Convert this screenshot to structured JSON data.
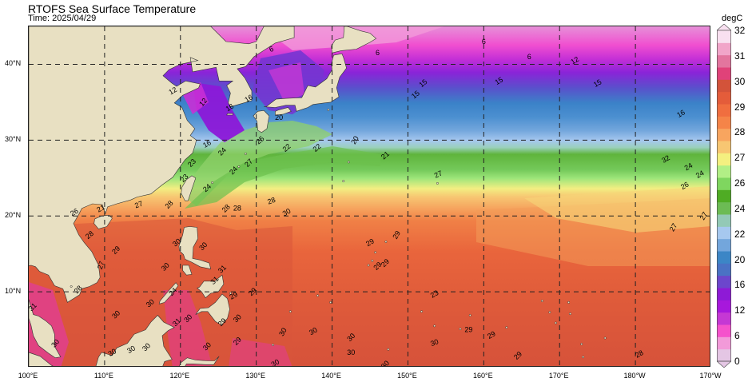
{
  "header": {
    "title": "RTOFS Sea Surface Temperature",
    "time": "Time: 2025/04/29"
  },
  "map": {
    "lon_range": [
      100,
      190
    ],
    "lat_range": [
      0,
      45
    ],
    "x_ticks": [
      {
        "lon": 100,
        "label": "100°E"
      },
      {
        "lon": 110,
        "label": "110°E"
      },
      {
        "lon": 120,
        "label": "120°E"
      },
      {
        "lon": 130,
        "label": "130°E"
      },
      {
        "lon": 140,
        "label": "140°E"
      },
      {
        "lon": 150,
        "label": "150°E"
      },
      {
        "lon": 160,
        "label": "160°E"
      },
      {
        "lon": 170,
        "label": "170°E"
      },
      {
        "lon": 180,
        "label": "180°W"
      },
      {
        "lon": 190,
        "label": "170°W"
      }
    ],
    "y_ticks": [
      {
        "lat": 10,
        "label": "10°N"
      },
      {
        "lat": 20,
        "label": "20°N"
      },
      {
        "lat": 30,
        "label": "30°N"
      },
      {
        "lat": 40,
        "label": "40°N"
      }
    ],
    "grid_lons": [
      110,
      120,
      130,
      140,
      150,
      160,
      170,
      180
    ],
    "grid_lats": [
      10,
      20,
      30,
      40
    ],
    "land_color": "#e8e0c2",
    "contour_labels": [
      {
        "text": "6",
        "lon": 132,
        "lat": 42,
        "rot": -20
      },
      {
        "text": "6",
        "lon": 146,
        "lat": 41.5,
        "rot": 0
      },
      {
        "text": "6",
        "lon": 160,
        "lat": 43,
        "rot": 0
      },
      {
        "text": "6",
        "lon": 166,
        "lat": 41,
        "rot": 0
      },
      {
        "text": "12",
        "lon": 172,
        "lat": 40.5,
        "rot": -30
      },
      {
        "text": "12",
        "lon": 119,
        "lat": 36.5,
        "rot": -30
      },
      {
        "text": "12",
        "lon": 123,
        "lat": 35,
        "rot": -50
      },
      {
        "text": "16",
        "lon": 126.5,
        "lat": 34.3,
        "rot": -30
      },
      {
        "text": "16",
        "lon": 129,
        "lat": 35.5,
        "rot": -30
      },
      {
        "text": "15",
        "lon": 152,
        "lat": 37.5,
        "rot": -40
      },
      {
        "text": "15",
        "lon": 151,
        "lat": 36,
        "rot": -40
      },
      {
        "text": "15",
        "lon": 162,
        "lat": 37.8,
        "rot": -30
      },
      {
        "text": "15",
        "lon": 175,
        "lat": 37.5,
        "rot": -30
      },
      {
        "text": "16",
        "lon": 186,
        "lat": 33.5,
        "rot": -30
      },
      {
        "text": "20",
        "lon": 133,
        "lat": 33,
        "rot": 0
      },
      {
        "text": "16",
        "lon": 123.5,
        "lat": 29.5,
        "rot": -30
      },
      {
        "text": "24",
        "lon": 125.5,
        "lat": 28.5,
        "rot": -45
      },
      {
        "text": "25",
        "lon": 130.5,
        "lat": 30,
        "rot": -40
      },
      {
        "text": "22",
        "lon": 134,
        "lat": 29,
        "rot": -40
      },
      {
        "text": "22",
        "lon": 138,
        "lat": 29,
        "rot": -40
      },
      {
        "text": "20",
        "lon": 143,
        "lat": 30,
        "rot": -60
      },
      {
        "text": "21",
        "lon": 147,
        "lat": 28,
        "rot": -40
      },
      {
        "text": "23",
        "lon": 121.5,
        "lat": 27,
        "rot": -45
      },
      {
        "text": "24",
        "lon": 127,
        "lat": 26,
        "rot": -45
      },
      {
        "text": "27",
        "lon": 129,
        "lat": 27,
        "rot": -45
      },
      {
        "text": "23",
        "lon": 120.5,
        "lat": 25,
        "rot": -45
      },
      {
        "text": "24",
        "lon": 123.5,
        "lat": 23.7,
        "rot": -40
      },
      {
        "text": "27",
        "lon": 154,
        "lat": 25.5,
        "rot": -25
      },
      {
        "text": "32",
        "lon": 184,
        "lat": 27.5,
        "rot": -30
      },
      {
        "text": "24",
        "lon": 187,
        "lat": 26.5,
        "rot": -30
      },
      {
        "text": "24",
        "lon": 188.5,
        "lat": 25.5,
        "rot": -30
      },
      {
        "text": "26",
        "lon": 186.5,
        "lat": 24,
        "rot": -30
      },
      {
        "text": "27",
        "lon": 189,
        "lat": 20,
        "rot": -60
      },
      {
        "text": "27",
        "lon": 185,
        "lat": 18.5,
        "rot": -60
      },
      {
        "text": "21",
        "lon": 109.5,
        "lat": 21,
        "rot": -30
      },
      {
        "text": "27",
        "lon": 114.5,
        "lat": 21.5,
        "rot": -20
      },
      {
        "text": "28",
        "lon": 118.5,
        "lat": 21.5,
        "rot": -45
      },
      {
        "text": "28",
        "lon": 126,
        "lat": 21,
        "rot": -45
      },
      {
        "text": "28",
        "lon": 127.5,
        "lat": 21,
        "rot": 0
      },
      {
        "text": "28",
        "lon": 132,
        "lat": 22,
        "rot": -20
      },
      {
        "text": "30",
        "lon": 134,
        "lat": 20.5,
        "rot": -30
      },
      {
        "text": "26",
        "lon": 106,
        "lat": 20.5,
        "rot": -30
      },
      {
        "text": "28",
        "lon": 108,
        "lat": 17.5,
        "rot": -40
      },
      {
        "text": "29",
        "lon": 111.5,
        "lat": 15.5,
        "rot": -45
      },
      {
        "text": "30",
        "lon": 119.5,
        "lat": 16.5,
        "rot": -40
      },
      {
        "text": "30",
        "lon": 123,
        "lat": 16,
        "rot": -45
      },
      {
        "text": "29",
        "lon": 145,
        "lat": 16.5,
        "rot": -30
      },
      {
        "text": "29",
        "lon": 148.5,
        "lat": 17.5,
        "rot": -60
      },
      {
        "text": "29",
        "lon": 147,
        "lat": 13.8,
        "rot": -45
      },
      {
        "text": "29",
        "lon": 146,
        "lat": 13.4,
        "rot": -45
      },
      {
        "text": "27",
        "lon": 109.5,
        "lat": 13.5,
        "rot": -70
      },
      {
        "text": "30",
        "lon": 118,
        "lat": 13.3,
        "rot": -45
      },
      {
        "text": "31",
        "lon": 125.5,
        "lat": 13,
        "rot": -45
      },
      {
        "text": "31",
        "lon": 124.5,
        "lat": 11.5,
        "rot": -45
      },
      {
        "text": "29",
        "lon": 127,
        "lat": 9.5,
        "rot": -30
      },
      {
        "text": "29",
        "lon": 129.5,
        "lat": 10,
        "rot": -45
      },
      {
        "text": "24",
        "lon": 119,
        "lat": 10,
        "rot": -45
      },
      {
        "text": "28",
        "lon": 106.5,
        "lat": 10.3,
        "rot": -45
      },
      {
        "text": "30",
        "lon": 116,
        "lat": 8.5,
        "rot": -40
      },
      {
        "text": "30",
        "lon": 111.5,
        "lat": 7,
        "rot": -45
      },
      {
        "text": "23",
        "lon": 153.5,
        "lat": 9.7,
        "rot": -30
      },
      {
        "text": "31",
        "lon": 100.5,
        "lat": 8,
        "rot": -45
      },
      {
        "text": "31",
        "lon": 119.5,
        "lat": 6,
        "rot": -45
      },
      {
        "text": "30",
        "lon": 121,
        "lat": 6.5,
        "rot": -45
      },
      {
        "text": "29",
        "lon": 125.5,
        "lat": 6,
        "rot": -45
      },
      {
        "text": "30",
        "lon": 127.5,
        "lat": 6.5,
        "rot": -45
      },
      {
        "text": "30",
        "lon": 133.5,
        "lat": 4.7,
        "rot": -60
      },
      {
        "text": "30",
        "lon": 137.5,
        "lat": 4.8,
        "rot": -30
      },
      {
        "text": "30",
        "lon": 142.5,
        "lat": 4,
        "rot": -45
      },
      {
        "text": "29",
        "lon": 158,
        "lat": 5,
        "rot": 0
      },
      {
        "text": "29",
        "lon": 161,
        "lat": 4.3,
        "rot": -30
      },
      {
        "text": "30",
        "lon": 103.5,
        "lat": 3.2,
        "rot": -50
      },
      {
        "text": "30",
        "lon": 115.5,
        "lat": 2.7,
        "rot": -45
      },
      {
        "text": "30",
        "lon": 123.5,
        "lat": 2.8,
        "rot": -45
      },
      {
        "text": "29",
        "lon": 127.5,
        "lat": 3.5,
        "rot": -45
      },
      {
        "text": "30",
        "lon": 153.5,
        "lat": 3.3,
        "rot": -20
      },
      {
        "text": "30",
        "lon": 111,
        "lat": 2,
        "rot": -30
      },
      {
        "text": "30",
        "lon": 113.5,
        "lat": 2.4,
        "rot": -30
      },
      {
        "text": "30",
        "lon": 142.5,
        "lat": 2,
        "rot": 0
      },
      {
        "text": "29",
        "lon": 164.5,
        "lat": 1.6,
        "rot": -45
      },
      {
        "text": "28",
        "lon": 180.5,
        "lat": 1.8,
        "rot": -30
      },
      {
        "text": "30",
        "lon": 132.5,
        "lat": 0.6,
        "rot": -30
      },
      {
        "text": "30",
        "lon": 147,
        "lat": 0.4,
        "rot": -45
      }
    ]
  },
  "colorbar": {
    "unit": "degC",
    "labels": [
      "0",
      "6",
      "12",
      "16",
      "20",
      "22",
      "24",
      "26",
      "27",
      "28",
      "29",
      "30",
      "31",
      "32"
    ],
    "colors": [
      "#e4c6e4",
      "#f29ad9",
      "#f552cc",
      "#c538d4",
      "#a718dc",
      "#8e1ad6",
      "#6c46cc",
      "#4a72c4",
      "#3c86c6",
      "#73a6dc",
      "#a6c8ef",
      "#93c9b6",
      "#6cbb54",
      "#4fac24",
      "#7fd65f",
      "#b2ef86",
      "#f4f080",
      "#f7c672",
      "#f8a55f",
      "#f58448",
      "#f06e3f",
      "#e45c3a",
      "#d3533a",
      "#e04279",
      "#e3759e",
      "#f1a5c9",
      "#f8e0f0"
    ]
  }
}
